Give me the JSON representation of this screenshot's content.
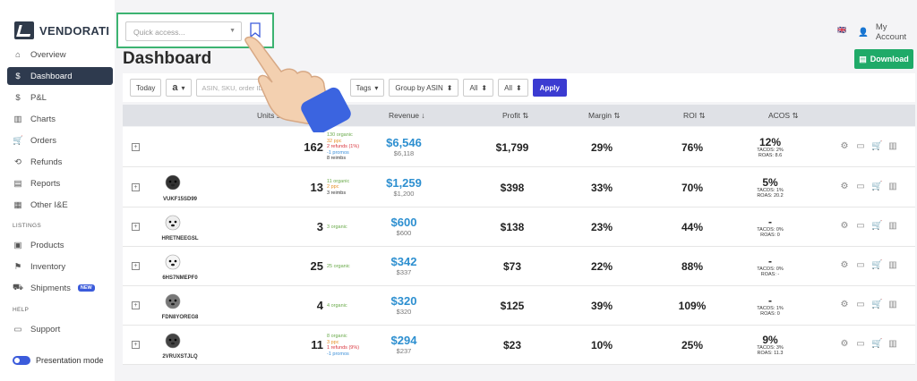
{
  "brand": {
    "name": "VENDORATI"
  },
  "sidebar": {
    "items": [
      {
        "label": "Overview",
        "icon": "home-icon"
      },
      {
        "label": "Dashboard",
        "icon": "dollar-icon"
      },
      {
        "label": "P&L",
        "icon": "dollar-circle-icon"
      },
      {
        "label": "Charts",
        "icon": "chart-icon"
      },
      {
        "label": "Orders",
        "icon": "cart-icon"
      },
      {
        "label": "Refunds",
        "icon": "refund-icon"
      },
      {
        "label": "Reports",
        "icon": "report-icon"
      },
      {
        "label": "Other I&E",
        "icon": "calculator-icon"
      }
    ],
    "listings_label": "LISTINGS",
    "listing_items": [
      {
        "label": "Products",
        "icon": "boxes-icon"
      },
      {
        "label": "Inventory",
        "icon": "inventory-icon"
      },
      {
        "label": "Shipments",
        "icon": "truck-icon",
        "badge": "NEW"
      }
    ],
    "help_label": "HELP",
    "help_items": [
      {
        "label": "Support",
        "icon": "chat-icon"
      }
    ],
    "presentation_label": "Presentation mode"
  },
  "header": {
    "quick_access_placeholder": "Quick access...",
    "account_label": "My Account",
    "flag": "🇬🇧"
  },
  "page": {
    "title": "Dashboard",
    "download_label": "Download"
  },
  "filters": {
    "today": "Today",
    "marketplace": "a",
    "search_placeholder": "ASIN, SKU, order ID",
    "tags": "Tags",
    "group_by": "Group by ASIN",
    "all1": "All",
    "all2": "All",
    "apply": "Apply"
  },
  "columns": {
    "units": "Units sold ⇅",
    "revenue": "Revenue ↓",
    "profit": "Profit ⇅",
    "margin": "Margin ⇅",
    "roi": "ROI ⇅",
    "acos": "ACOS ⇅"
  },
  "rows": [
    {
      "sku": "",
      "units": "162",
      "breakdown": [
        "130 organic",
        "32 ppc",
        "2 refunds (1%)",
        "-1 promos",
        "8 reimbs"
      ],
      "revenue": "$6,546",
      "revenue_sub": "$6,118",
      "profit": "$1,799",
      "margin": "29%",
      "roi": "76%",
      "acos": "12%",
      "acos_sub": [
        "TACOS: 2%",
        "ROAS: 8.6"
      ]
    },
    {
      "sku": "VUKF15SD99",
      "units": "13",
      "breakdown": [
        "11 organic",
        "2 ppc",
        "3 reimbs"
      ],
      "revenue": "$1,259",
      "revenue_sub": "$1,200",
      "profit": "$398",
      "margin": "33%",
      "roi": "70%",
      "acos": "5%",
      "acos_sub": [
        "TACOS: 1%",
        "ROAS: 20.2"
      ]
    },
    {
      "sku": "HRETNEEGSL",
      "units": "3",
      "breakdown": [
        "3 organic"
      ],
      "revenue": "$600",
      "revenue_sub": "$600",
      "profit": "$138",
      "margin": "23%",
      "roi": "44%",
      "acos": "-",
      "acos_sub": [
        "TACOS: 0%",
        "ROAS: 0"
      ]
    },
    {
      "sku": "6HS7NMEPF0",
      "units": "25",
      "breakdown": [
        "25 organic"
      ],
      "revenue": "$342",
      "revenue_sub": "$337",
      "profit": "$73",
      "margin": "22%",
      "roi": "88%",
      "acos": "-",
      "acos_sub": [
        "TACOS: 0%",
        "ROAS: -"
      ]
    },
    {
      "sku": "FDN8YOREG8",
      "units": "4",
      "breakdown": [
        "4 organic"
      ],
      "revenue": "$320",
      "revenue_sub": "$320",
      "profit": "$125",
      "margin": "39%",
      "roi": "109%",
      "acos": "-",
      "acos_sub": [
        "TACOS: 1%",
        "ROAS: 0"
      ]
    },
    {
      "sku": "2VRUXSTJLQ",
      "units": "11",
      "breakdown": [
        "8 organic",
        "3 ppc",
        "1 refunds (9%)",
        "-1 promos"
      ],
      "revenue": "$294",
      "revenue_sub": "$237",
      "profit": "$23",
      "margin": "10%",
      "roi": "25%",
      "acos": "9%",
      "acos_sub": [
        "TACOS: 3%",
        "ROAS: 11.3"
      ]
    }
  ],
  "colors": {
    "accent": "#3b3bd1",
    "active_nav": "#2e3a4e",
    "download": "#1faa68",
    "revenue": "#2d8fd0",
    "highlight_box": "#3cb371"
  }
}
